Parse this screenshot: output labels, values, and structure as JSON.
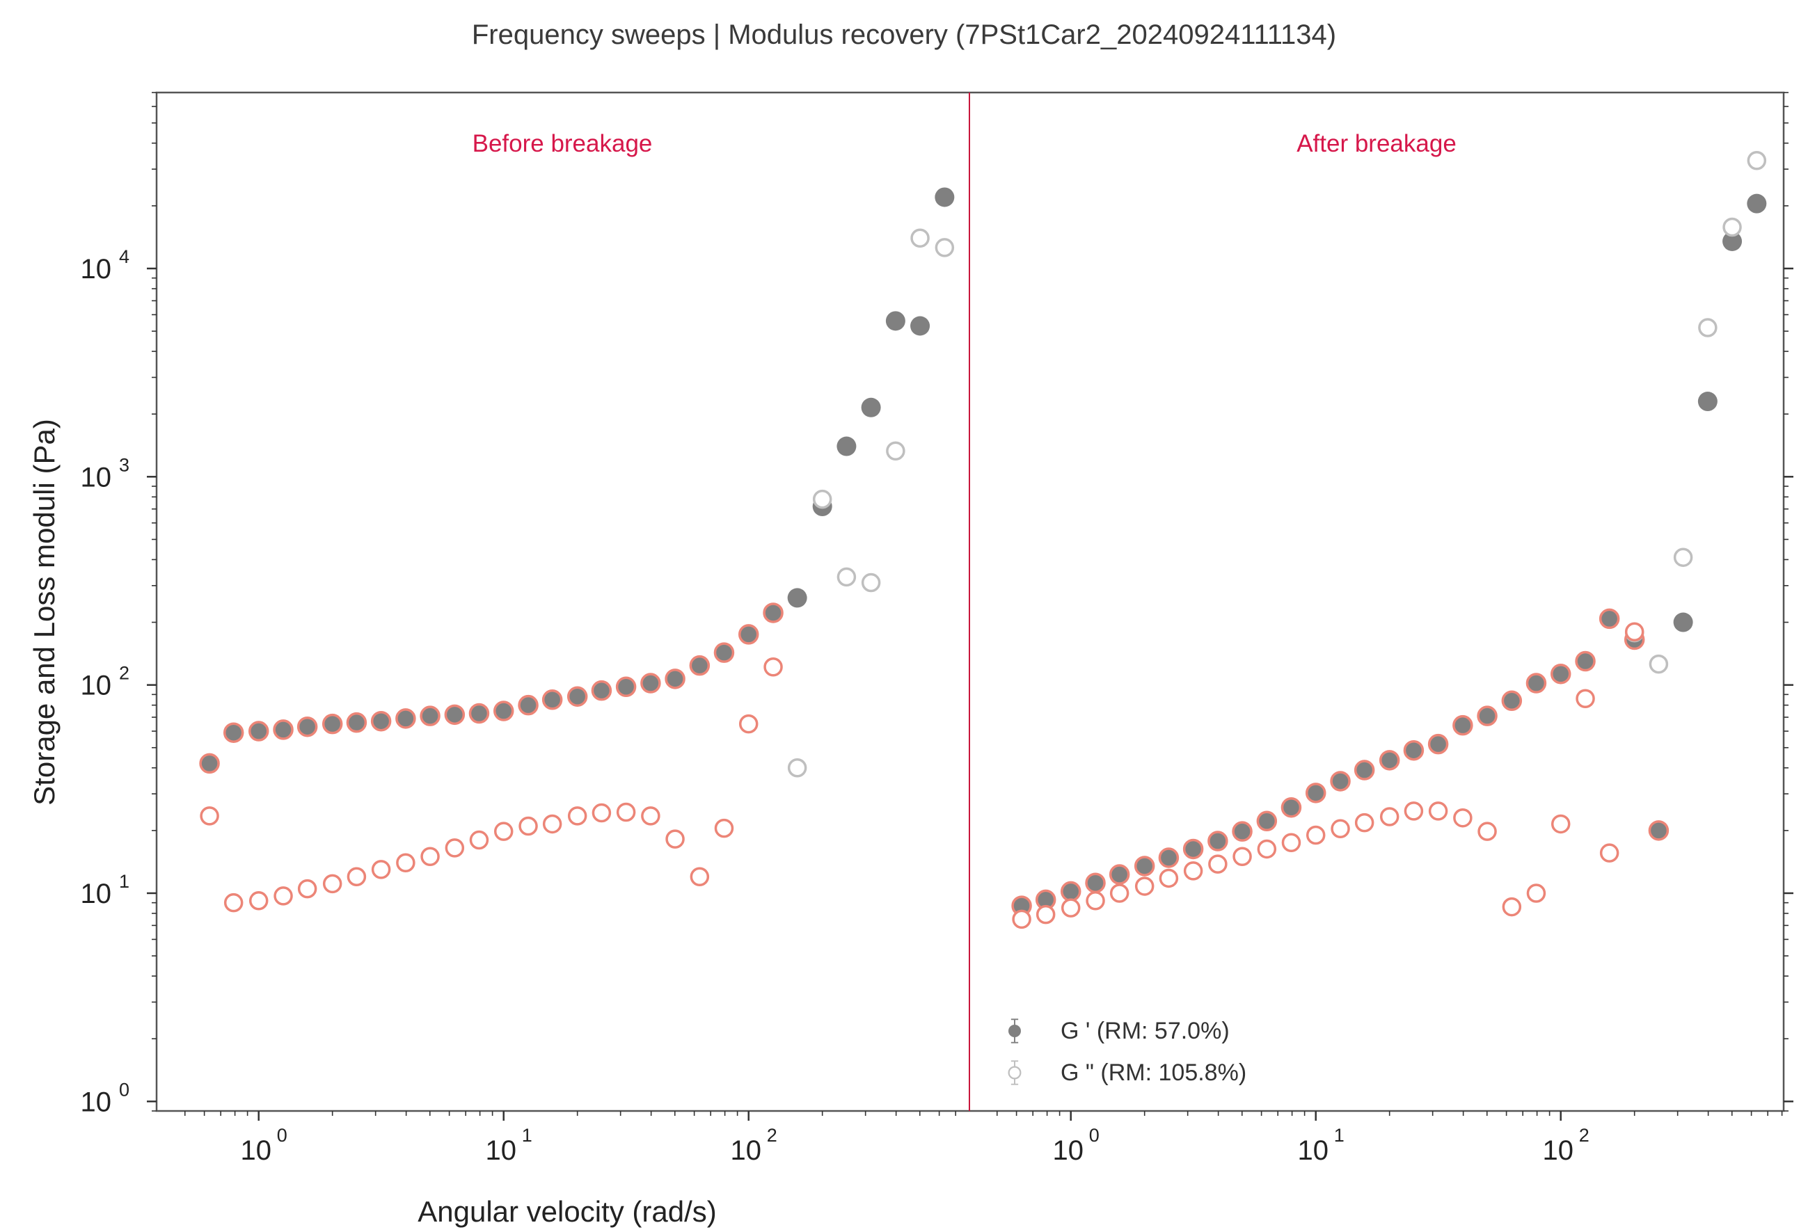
{
  "title": "Frequency sweeps | Modulus recovery (7PSt1Car2_20240924111134)",
  "xlabel": "Angular velocity (rad/s)",
  "ylabel": "Storage and Loss moduli (Pa)",
  "annotations": {
    "before": "Before breakage",
    "after": "After breakage"
  },
  "legend": {
    "g1": "G ' (RM: 57.0%)",
    "g2": "G \" (RM: 105.8%)"
  },
  "colors": {
    "g1": "#808080",
    "g2_ring": "#bfbfbf",
    "overlay": "#ec8577",
    "divider": "#c8173c",
    "annotation": "#d6174a"
  },
  "chart_data": {
    "type": "scatter",
    "x_scale": "log",
    "y_scale": "log",
    "ylim": [
      0.9,
      70000
    ],
    "y_ticks": [
      {
        "value": 1,
        "base": "10",
        "exp": "0"
      },
      {
        "value": 10,
        "base": "10",
        "exp": "1"
      },
      {
        "value": 100,
        "base": "10",
        "exp": "2"
      },
      {
        "value": 1000,
        "base": "10",
        "exp": "3"
      },
      {
        "value": 10000,
        "base": "10",
        "exp": "4"
      }
    ],
    "panels": [
      {
        "name": "before",
        "annotation": "Before breakage",
        "x_ticks": [
          {
            "value": 1,
            "base": "10",
            "exp": "0"
          },
          {
            "value": 10,
            "base": "10",
            "exp": "1"
          },
          {
            "value": 100,
            "base": "10",
            "exp": "2"
          }
        ],
        "g_storage_gray": {
          "x": [
            0.63,
            0.79,
            1.0,
            1.26,
            1.58,
            2.0,
            2.51,
            3.16,
            3.98,
            5.01,
            6.31,
            7.94,
            10.0,
            12.6,
            15.8,
            20.0,
            25.1,
            31.6,
            39.8,
            50.1,
            63.1,
            79.4,
            100,
            126,
            158,
            200,
            251,
            316,
            398,
            501,
            631
          ],
          "y": [
            42,
            59,
            60,
            61,
            63,
            65,
            66,
            67,
            69,
            71,
            72,
            73,
            75,
            80,
            85,
            88,
            94,
            98,
            102,
            107,
            124,
            143,
            175,
            222,
            262,
            720,
            1400,
            2150,
            5600,
            5300,
            22000
          ]
        },
        "g_loss_gray": {
          "x": [
            158,
            200,
            251,
            316,
            398,
            501,
            631
          ],
          "y": [
            40,
            780,
            330,
            310,
            1330,
            14000,
            12600
          ]
        },
        "overlay_storage": {
          "x": [
            0.63,
            0.79,
            1.0,
            1.26,
            1.58,
            2.0,
            2.51,
            3.16,
            3.98,
            5.01,
            6.31,
            7.94,
            10.0,
            12.6,
            15.8,
            20.0,
            25.1,
            31.6,
            39.8,
            50.1,
            63.1,
            79.4,
            100,
            126
          ],
          "y": [
            42,
            59,
            60,
            61,
            63,
            65,
            66,
            67,
            69,
            71,
            72,
            73,
            75,
            80,
            85,
            88,
            94,
            98,
            102,
            107,
            124,
            143,
            175,
            222
          ]
        },
        "overlay_loss": {
          "x": [
            0.63,
            0.79,
            1.0,
            1.26,
            1.58,
            2.0,
            2.51,
            3.16,
            3.98,
            5.01,
            6.31,
            7.94,
            10.0,
            12.6,
            15.8,
            20.0,
            25.1,
            31.6,
            39.8,
            50.1,
            63.1,
            79.4,
            100,
            126
          ],
          "y": [
            23.5,
            9.0,
            9.2,
            9.7,
            10.5,
            11.1,
            12.0,
            13.0,
            14.0,
            15.0,
            16.5,
            18.0,
            19.8,
            21.0,
            21.5,
            23.5,
            24.3,
            24.5,
            23.5,
            18.2,
            12.0,
            20.5,
            65,
            122
          ]
        }
      },
      {
        "name": "after",
        "annotation": "After breakage",
        "x_ticks": [
          {
            "value": 1,
            "base": "10",
            "exp": "0"
          },
          {
            "value": 10,
            "base": "10",
            "exp": "1"
          },
          {
            "value": 100,
            "base": "10",
            "exp": "2"
          }
        ],
        "g_storage_gray": {
          "x": [
            0.63,
            0.79,
            1.0,
            1.26,
            1.58,
            2.0,
            2.51,
            3.16,
            3.98,
            5.01,
            6.31,
            7.94,
            10.0,
            12.6,
            15.8,
            20.0,
            25.1,
            31.6,
            39.8,
            50.1,
            63.1,
            79.4,
            100,
            126,
            158,
            200,
            251,
            316,
            398,
            501,
            631
          ],
          "y": [
            8.7,
            9.3,
            10.2,
            11.2,
            12.3,
            13.5,
            14.8,
            16.3,
            17.8,
            19.8,
            22.2,
            25.8,
            30.3,
            34.5,
            39.0,
            43.5,
            48.5,
            52.0,
            64.0,
            71.0,
            84.0,
            102,
            113,
            130,
            208,
            165,
            20,
            200,
            2300,
            13500,
            20500
          ]
        },
        "g_loss_gray": {
          "x": [
            200,
            251,
            316,
            398,
            501,
            631
          ],
          "y": [
            178,
            126,
            410,
            5200,
            15800,
            33000
          ]
        },
        "overlay_storage": {
          "x": [
            0.63,
            0.79,
            1.0,
            1.26,
            1.58,
            2.0,
            2.51,
            3.16,
            3.98,
            5.01,
            6.31,
            7.94,
            10.0,
            12.6,
            15.8,
            20.0,
            25.1,
            31.6,
            39.8,
            50.1,
            63.1,
            79.4,
            100,
            126,
            158,
            200,
            251
          ],
          "y": [
            8.7,
            9.3,
            10.2,
            11.2,
            12.3,
            13.5,
            14.8,
            16.3,
            17.8,
            19.8,
            22.2,
            25.8,
            30.3,
            34.5,
            39.0,
            43.5,
            48.5,
            52.0,
            64.0,
            71.0,
            84.0,
            102,
            113,
            130,
            208,
            165,
            20
          ]
        },
        "overlay_loss": {
          "x": [
            0.63,
            0.79,
            1.0,
            1.26,
            1.58,
            2.0,
            2.51,
            3.16,
            3.98,
            5.01,
            6.31,
            7.94,
            10.0,
            12.6,
            15.8,
            20.0,
            25.1,
            31.6,
            39.8,
            50.1,
            63.1,
            79.4,
            100,
            126,
            158,
            200
          ],
          "y": [
            7.5,
            7.9,
            8.5,
            9.2,
            10.0,
            10.8,
            11.8,
            12.8,
            13.8,
            15.0,
            16.3,
            17.5,
            19.0,
            20.4,
            21.8,
            23.3,
            24.8,
            24.8,
            23.0,
            19.8,
            8.6,
            10.0,
            21.5,
            86,
            15.6,
            180
          ]
        }
      }
    ]
  }
}
